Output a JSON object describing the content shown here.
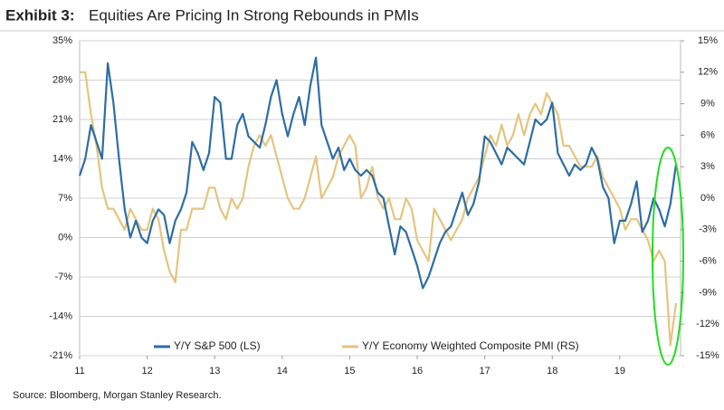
{
  "chart_data": {
    "type": "line",
    "title_label": "Exhibit 3:",
    "title": "Equities Are Pricing In Strong Rebounds in PMIs",
    "source": "Source: Bloomberg, Morgan Stanley Research.",
    "x": [
      2011.0,
      2011.083,
      2011.167,
      2011.25,
      2011.333,
      2011.417,
      2011.5,
      2011.583,
      2011.667,
      2011.75,
      2011.833,
      2011.917,
      2012.0,
      2012.083,
      2012.167,
      2012.25,
      2012.333,
      2012.417,
      2012.5,
      2012.583,
      2012.667,
      2012.75,
      2012.833,
      2012.917,
      2013.0,
      2013.083,
      2013.167,
      2013.25,
      2013.333,
      2013.417,
      2013.5,
      2013.583,
      2013.667,
      2013.75,
      2013.833,
      2013.917,
      2014.0,
      2014.083,
      2014.167,
      2014.25,
      2014.333,
      2014.417,
      2014.5,
      2014.583,
      2014.667,
      2014.75,
      2014.833,
      2014.917,
      2015.0,
      2015.083,
      2015.167,
      2015.25,
      2015.333,
      2015.417,
      2015.5,
      2015.583,
      2015.667,
      2015.75,
      2015.833,
      2015.917,
      2016.0,
      2016.083,
      2016.167,
      2016.25,
      2016.333,
      2016.417,
      2016.5,
      2016.583,
      2016.667,
      2016.75,
      2016.833,
      2016.917,
      2017.0,
      2017.083,
      2017.167,
      2017.25,
      2017.333,
      2017.417,
      2017.5,
      2017.583,
      2017.667,
      2017.75,
      2017.833,
      2017.917,
      2018.0,
      2018.083,
      2018.167,
      2018.25,
      2018.333,
      2018.417,
      2018.5,
      2018.583,
      2018.667,
      2018.75,
      2018.833,
      2018.917,
      2019.0,
      2019.083,
      2019.167,
      2019.25,
      2019.333,
      2019.417,
      2019.5,
      2019.583,
      2019.667,
      2019.75,
      2019.833
    ],
    "series": [
      {
        "name": "Y/Y S&P 500 (LS)",
        "color": "#2e6da4",
        "axis": "y",
        "values": [
          11,
          14,
          20,
          17,
          14,
          31,
          24,
          14,
          5,
          0,
          3,
          0,
          -1,
          3,
          5,
          4,
          -1,
          3,
          5,
          8,
          17,
          15,
          12,
          15,
          25,
          24,
          14,
          14,
          20,
          22,
          18,
          17,
          16,
          20,
          25,
          28,
          22,
          18,
          22,
          25,
          20,
          27,
          32,
          20,
          17,
          14,
          16,
          12,
          14,
          12,
          11,
          12,
          11,
          8,
          7,
          2,
          -3,
          2,
          1,
          -2,
          -5,
          -9,
          -7,
          -4,
          -1,
          1,
          2,
          5,
          8,
          4,
          6,
          10,
          18,
          17,
          15,
          13,
          16,
          15,
          14,
          13,
          17,
          21,
          20,
          21,
          24,
          15,
          13,
          11,
          13,
          12,
          13,
          16,
          14,
          9,
          7,
          -1,
          3,
          3,
          6,
          10,
          1,
          3,
          7,
          5,
          2,
          6,
          13
        ]
      },
      {
        "name": "Y/Y Economy Weighted Composite PMI (RS)",
        "color": "#e5c47f",
        "axis": "y2",
        "values": [
          12,
          12,
          8,
          5,
          1,
          -1,
          -1,
          -2,
          -3,
          -1,
          -2,
          -3,
          -3,
          -1,
          -2,
          -5,
          -7,
          -8,
          -3,
          -3,
          -1,
          -1,
          -1,
          1,
          1,
          -1,
          -2,
          0,
          -1,
          0,
          3,
          5,
          6,
          5,
          6,
          4,
          2,
          0,
          -1,
          -1,
          0,
          2,
          4,
          0,
          1,
          2,
          4,
          5,
          6,
          5,
          0,
          1,
          3,
          0,
          -1,
          0,
          -2,
          -2,
          0,
          -1,
          -4,
          -5,
          -6,
          -1,
          -2,
          -3,
          -4,
          -3,
          -2,
          0,
          1,
          2,
          4,
          6,
          5,
          7,
          5,
          6,
          8,
          6,
          8,
          9,
          8,
          10,
          9,
          8,
          5,
          5,
          4,
          3,
          3,
          3,
          4,
          2,
          1,
          0,
          -1,
          -3,
          -2,
          -2,
          -3,
          -4,
          -6,
          -5,
          -6,
          -14,
          -10
        ]
      }
    ],
    "xlim": [
      2011,
      2019.9
    ],
    "xticks": [
      {
        "value": 2011,
        "label": "11"
      },
      {
        "value": 2012,
        "label": "12"
      },
      {
        "value": 2013,
        "label": "13"
      },
      {
        "value": 2014,
        "label": "14"
      },
      {
        "value": 2015,
        "label": "15"
      },
      {
        "value": 2016,
        "label": "16"
      },
      {
        "value": 2017,
        "label": "17"
      },
      {
        "value": 2018,
        "label": "18"
      },
      {
        "value": 2019,
        "label": "19"
      }
    ],
    "ylim": [
      -21,
      35
    ],
    "yticks": [
      {
        "value": -21,
        "label": "-21%"
      },
      {
        "value": -14,
        "label": "-14%"
      },
      {
        "value": -7,
        "label": "-7%"
      },
      {
        "value": 0,
        "label": "0%"
      },
      {
        "value": 7,
        "label": "7%"
      },
      {
        "value": 14,
        "label": "14%"
      },
      {
        "value": 21,
        "label": "21%"
      },
      {
        "value": 28,
        "label": "28%"
      },
      {
        "value": 35,
        "label": "35%"
      }
    ],
    "y2lim": [
      -15,
      15
    ],
    "y2ticks": [
      {
        "value": -15,
        "label": "-15%"
      },
      {
        "value": -12,
        "label": "-12%"
      },
      {
        "value": -9,
        "label": "-9%"
      },
      {
        "value": -6,
        "label": "-6%"
      },
      {
        "value": -3,
        "label": "-3%"
      },
      {
        "value": 0,
        "label": "0%"
      },
      {
        "value": 3,
        "label": "3%"
      },
      {
        "value": 6,
        "label": "6%"
      },
      {
        "value": 9,
        "label": "9%"
      },
      {
        "value": 12,
        "label": "12%"
      },
      {
        "value": 15,
        "label": "15%"
      }
    ],
    "grid": true
  }
}
